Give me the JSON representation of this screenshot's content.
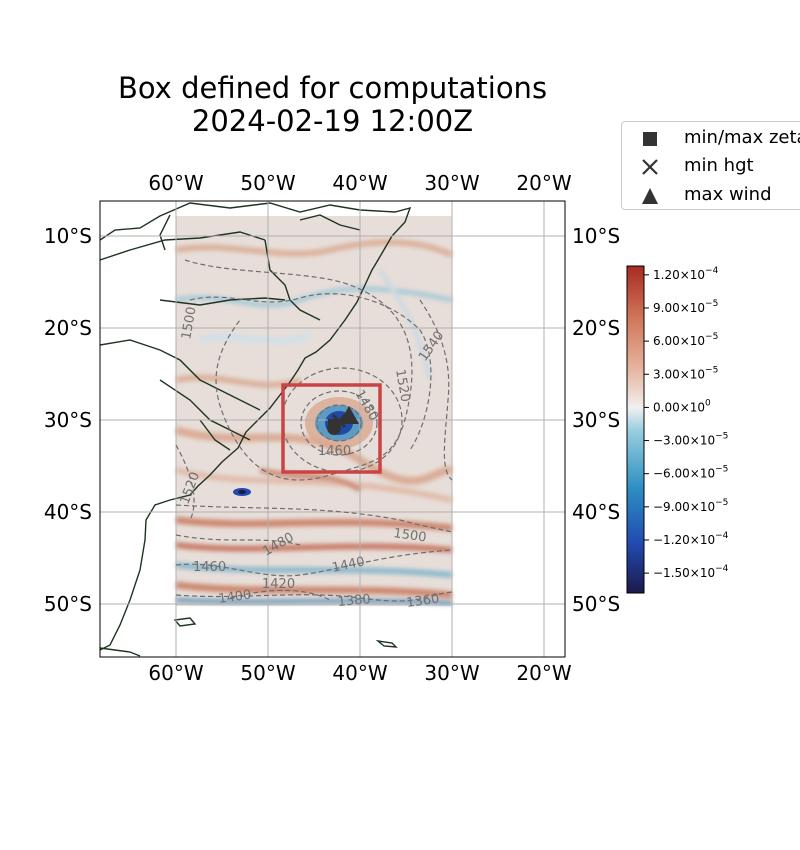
{
  "title": {
    "line1": "Box defined for computations",
    "line2": "2024-02-19 12:00Z"
  },
  "map": {
    "lon_ticks": [
      "60°W",
      "50°W",
      "40°W",
      "30°W",
      "20°W"
    ],
    "lat_ticks": [
      "10°S",
      "20°S",
      "30°S",
      "40°S",
      "50°S"
    ],
    "extent": {
      "lon": [
        -68.3,
        -17.7
      ],
      "lat": [
        -56,
        -6.5
      ]
    },
    "field_extent": {
      "lon": [
        -60,
        -30
      ],
      "lat": [
        -50,
        -8
      ]
    },
    "computation_box": {
      "lon": [
        -48.5,
        -38
      ],
      "lat": [
        -35.5,
        -26.5
      ],
      "color": "#c94444"
    },
    "contour_labels": [
      "1500",
      "1540",
      "1520",
      "1480",
      "1460",
      "1520",
      "1500",
      "1480",
      "1460",
      "1440",
      "1420",
      "1400",
      "1380",
      "1360"
    ]
  },
  "legend": {
    "items": [
      {
        "icon": "square-marker-icon",
        "label": "min/max zeta"
      },
      {
        "icon": "x-marker-icon",
        "label": "min hgt"
      },
      {
        "icon": "triangle-marker-icon",
        "label": "max wind"
      }
    ]
  },
  "colorbar": {
    "ticks": [
      {
        "value": 0.00012,
        "mant": "1.20",
        "exp": "−4"
      },
      {
        "value": 9e-05,
        "mant": "9.00",
        "exp": "−5"
      },
      {
        "value": 6e-05,
        "mant": "6.00",
        "exp": "−5"
      },
      {
        "value": 3e-05,
        "mant": "3.00",
        "exp": "−5"
      },
      {
        "value": 0,
        "mant": "0.00",
        "exp": "0"
      },
      {
        "value": -3e-05,
        "mant": "−3.00",
        "exp": "−5"
      },
      {
        "value": -6e-05,
        "mant": "−6.00",
        "exp": "−5"
      },
      {
        "value": -9e-05,
        "mant": "−9.00",
        "exp": "−5"
      },
      {
        "value": -0.00012,
        "mant": "−1.20",
        "exp": "−4"
      },
      {
        "value": -0.00015,
        "mant": "−1.50",
        "exp": "−4"
      }
    ],
    "range": [
      -0.000168,
      0.000128
    ],
    "colors": [
      "#1b1a4a",
      "#2249b0",
      "#2c8fc2",
      "#9ccfe0",
      "#f0f0f0",
      "#e7b7a1",
      "#d0765a",
      "#a82a22"
    ]
  }
}
